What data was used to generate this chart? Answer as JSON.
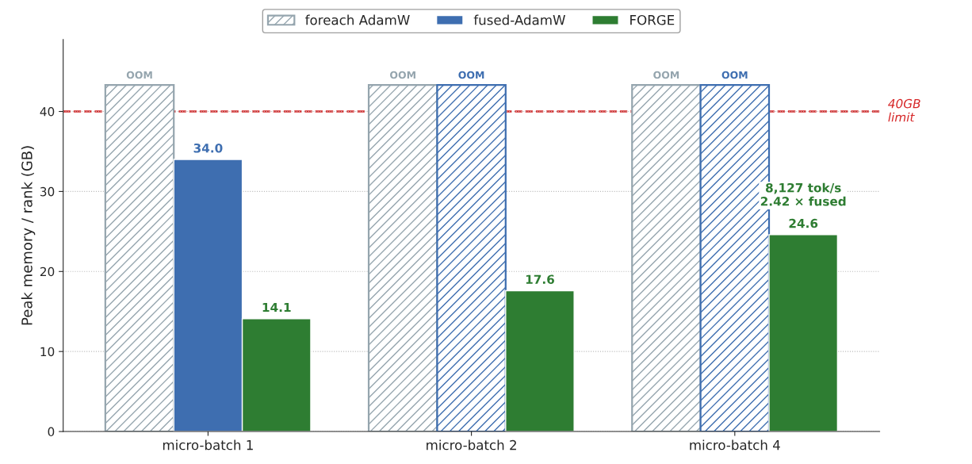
{
  "chart_data": {
    "type": "bar",
    "ylabel": "Peak memory / rank (GB)",
    "categories": [
      "micro-batch 1",
      "micro-batch 2",
      "micro-batch 4"
    ],
    "series": [
      {
        "name": "foreach AdamW",
        "color": "#95a5ae",
        "values": [
          43.3,
          43.3,
          43.3
        ],
        "value_labels": [
          "OOM",
          "OOM",
          "OOM"
        ]
      },
      {
        "name": "fused-AdamW",
        "color": "#3e6eb0",
        "values": [
          34.0,
          43.3,
          43.3
        ],
        "value_labels": [
          "34.0",
          "OOM",
          "OOM"
        ]
      },
      {
        "name": "FORGE",
        "color": "#2e7d32",
        "values": [
          14.1,
          17.6,
          24.6
        ],
        "value_labels": [
          "14.1",
          "17.6",
          "24.6"
        ]
      }
    ],
    "ylim": [
      0,
      49
    ],
    "yticks": [
      0,
      10,
      20,
      30,
      40
    ],
    "grid": "y",
    "legend": "top",
    "ref_lines": [
      {
        "axis": "y",
        "value": 40,
        "label": "40GB\nlimit",
        "color": "#d62728",
        "line_style": "dashed"
      }
    ],
    "annotations": [
      "8,127 tok/s\n2.42 × fused"
    ]
  }
}
